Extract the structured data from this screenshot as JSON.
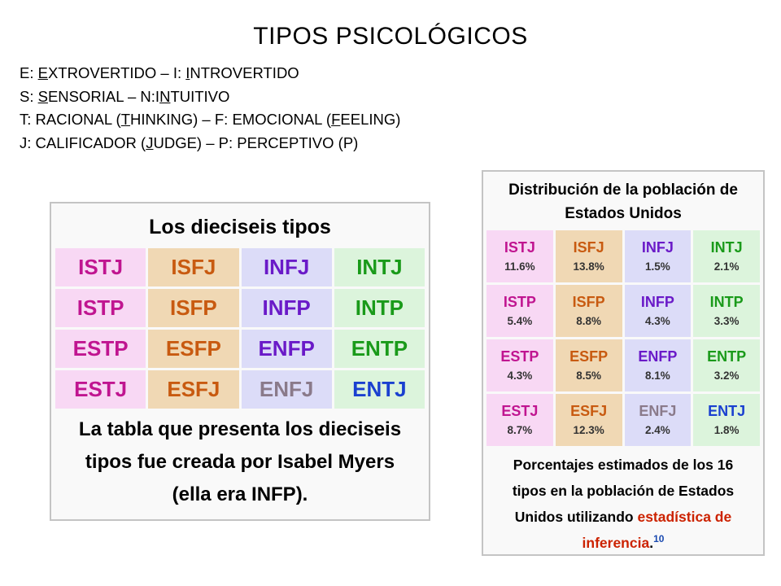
{
  "title": "TIPOS PSICOLÓGICOS",
  "legend": [
    {
      "pre": "E: ",
      "u": "E",
      "post": "XTROVERTIDO – I: ",
      "u2": "I",
      "post2": "NTROVERTIDO"
    },
    {
      "pre": "S: ",
      "u": "S",
      "post": "ENSORIAL – N:I",
      "u2": "N",
      "post2": "TUITIVO"
    },
    {
      "pre": "T: RACIONAL (",
      "u": "T",
      "post": "HINKING) – F: EMOCIONAL (",
      "u2": "F",
      "post2": "EELING)"
    },
    {
      "pre": "J:  CALIFICADOR (",
      "u": "J",
      "post": "UDGE) – P: PERCEPTIVO (P)",
      "u2": "",
      "post2": ""
    }
  ],
  "left_table": {
    "caption": "Los dieciseis tipos",
    "rows": [
      [
        "ISTJ",
        "ISFJ",
        "INFJ",
        "INTJ"
      ],
      [
        "ISTP",
        "ISFP",
        "INFP",
        "INTP"
      ],
      [
        "ESTP",
        "ESFP",
        "ENFP",
        "ENTP"
      ],
      [
        "ESTJ",
        "ESFJ",
        "ENFJ",
        "ENTJ"
      ]
    ],
    "note": [
      "La tabla que presenta los dieciseis",
      "tipos fue creada por Isabel Myers",
      "(ella era INFP)."
    ]
  },
  "right_table": {
    "caption": [
      "Distribución de la población de",
      "Estados Unidos"
    ],
    "rows": [
      [
        {
          "type": "ISTJ",
          "pct": "11.6%"
        },
        {
          "type": "ISFJ",
          "pct": "13.8%"
        },
        {
          "type": "INFJ",
          "pct": "1.5%"
        },
        {
          "type": "INTJ",
          "pct": "2.1%"
        }
      ],
      [
        {
          "type": "ISTP",
          "pct": "5.4%"
        },
        {
          "type": "ISFP",
          "pct": "8.8%"
        },
        {
          "type": "INFP",
          "pct": "4.3%"
        },
        {
          "type": "INTP",
          "pct": "3.3%"
        }
      ],
      [
        {
          "type": "ESTP",
          "pct": "4.3%"
        },
        {
          "type": "ESFP",
          "pct": "8.5%"
        },
        {
          "type": "ENFP",
          "pct": "8.1%"
        },
        {
          "type": "ENTP",
          "pct": "3.2%"
        }
      ],
      [
        {
          "type": "ESTJ",
          "pct": "8.7%"
        },
        {
          "type": "ESFJ",
          "pct": "12.3%"
        },
        {
          "type": "ENFJ",
          "pct": "2.4%"
        },
        {
          "type": "ENTJ",
          "pct": "1.8%"
        }
      ]
    ],
    "note": {
      "line1": "Porcentajes estimados de los 16",
      "line2": "tipos en la población de Estados",
      "line3_plain": "Unidos utilizando ",
      "line3_link": "estadística de",
      "line4_link": "inferencia",
      "line4_dot": ".",
      "ref": "10"
    }
  },
  "colors": {
    "cell_backgrounds": [
      "#f8d8f4",
      "#f0d8b4",
      "#dcdcf8",
      "#dcf4dc"
    ],
    "link": "#cc2200",
    "reference": "#1a4ab0"
  }
}
